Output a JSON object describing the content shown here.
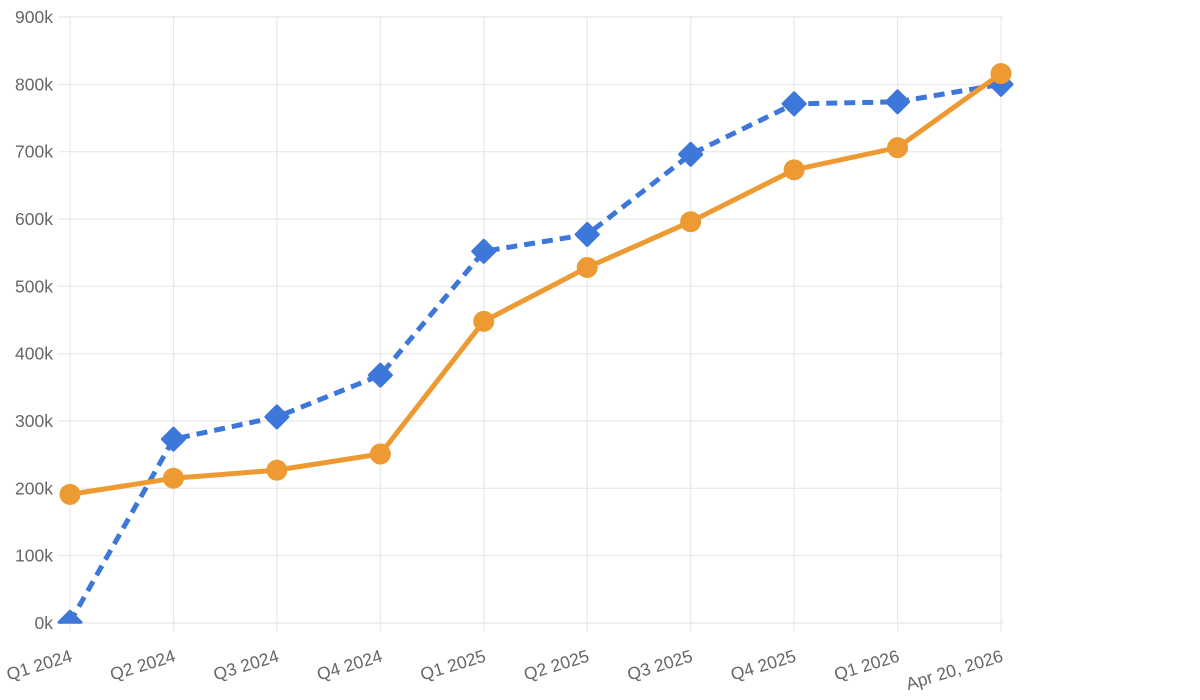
{
  "chart_data": {
    "type": "line",
    "title": "",
    "unit": "thousands (k)",
    "categories": [
      "Q1 2024",
      "Q2 2024",
      "Q3 2024",
      "Q4 2024",
      "Q1 2025",
      "Q2 2025",
      "Q3 2025",
      "Q4 2025",
      "Q1 2026",
      "Apr 20, 2026"
    ],
    "y_axis": {
      "min_k": 0,
      "max_k": 900,
      "step_k": 100,
      "tick_labels": [
        "0k",
        "100k",
        "200k",
        "300k",
        "400k",
        "500k",
        "600k",
        "700k",
        "800k",
        "900k"
      ]
    },
    "grid": true,
    "legend_position": "none",
    "series": [
      {
        "name": "blue-dashed-diamond-series",
        "color": "#3C77D9",
        "line_style": "dashed",
        "marker": "diamond",
        "values_k": [
          1,
          273,
          306,
          368,
          552,
          577,
          696,
          771,
          774,
          800
        ]
      },
      {
        "name": "orange-solid-circle-series",
        "color": "#EC9A31",
        "line_style": "solid",
        "marker": "circle",
        "values_k": [
          191,
          215,
          227,
          251,
          448,
          528,
          596,
          673,
          706,
          816
        ]
      }
    ]
  },
  "style": {
    "grid_color": "#E8E8E8",
    "label_color": "#666666",
    "background": "#FFFFFF"
  }
}
